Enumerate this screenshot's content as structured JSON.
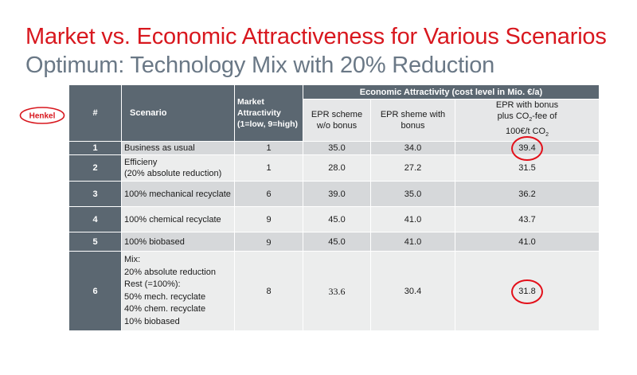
{
  "title": "Market vs. Economic Attractiveness for Various Scenarios",
  "subtitle": "Optimum: Technology Mix with 20% Reduction",
  "logo": {
    "text": "Henkel",
    "color": "#d8171e"
  },
  "table": {
    "headers": {
      "num": "#",
      "scenario": "Scenario",
      "market": "Market Attractivity (1=low, 9=high)",
      "economic_group": "Economic Attractivity (cost level in Mio. €/a)",
      "epr_wo": "EPR scheme w/o bonus",
      "epr_with": "EPR sheme with bonus",
      "epr_co2_line1": "EPR with bonus",
      "epr_co2_line2a": "plus CO",
      "epr_co2_line2b": "2",
      "epr_co2_line2c": "-fee of",
      "epr_co2_line3a": "100€/t CO",
      "epr_co2_line3b": "2"
    },
    "rows": [
      {
        "num": "1",
        "scenario": "Business as usual",
        "market": "1",
        "epr_wo": "35.0",
        "epr_with": "34.0",
        "epr_co2": "39.4"
      },
      {
        "num": "2",
        "scenario": "Efficieny\n(20% absolute reduction)",
        "market": "1",
        "epr_wo": "28.0",
        "epr_with": "27.2",
        "epr_co2": "31.5"
      },
      {
        "num": "3",
        "scenario": "100% mechanical recyclate",
        "market": "6",
        "epr_wo": "39.0",
        "epr_with": "35.0",
        "epr_co2": "36.2"
      },
      {
        "num": "4",
        "scenario": "100% chemical recyclate",
        "market": "9",
        "epr_wo": "45.0",
        "epr_with": "41.0",
        "epr_co2": "43.7"
      },
      {
        "num": "5",
        "scenario": "100% biobased",
        "market": "9",
        "epr_wo": "45.0",
        "epr_with": "41.0",
        "epr_co2": "41.0"
      },
      {
        "num": "6",
        "scenario": "Mix:\n20% absolute reduction\nRest (=100%):\n50% mech. recyclate\n40% chem. recyclate\n10% biobased",
        "market": "8",
        "epr_wo": "33.6",
        "epr_with": "30.4",
        "epr_co2": "31.8"
      }
    ]
  },
  "colors": {
    "title": "#d8171e",
    "subtitle": "#6a7886",
    "header_bg": "#5b6771",
    "highlight": "#e3101a"
  }
}
